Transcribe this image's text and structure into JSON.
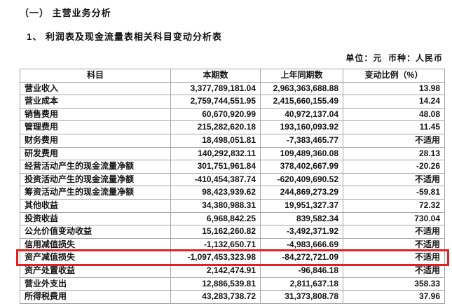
{
  "page": {
    "section_heading": "（一） 主营业务分析",
    "subsection_heading": "1、 利润表及现金流量表相关科目变动分析表",
    "unit_note": "单位：元  币种：人民币"
  },
  "table": {
    "headers": [
      "科目",
      "本期数",
      "上年同期数",
      "变动比例（%）"
    ],
    "rows": [
      {
        "item": "营业收入",
        "current": "3,377,789,181.04",
        "prior": "2,963,363,688.88",
        "change": "13.98",
        "highlight": false
      },
      {
        "item": "营业成本",
        "current": "2,759,744,551.95",
        "prior": "2,415,660,155.49",
        "change": "14.24",
        "highlight": false
      },
      {
        "item": "销售费用",
        "current": "60,670,920.99",
        "prior": "40,972,137.04",
        "change": "48.08",
        "highlight": false
      },
      {
        "item": "管理费用",
        "current": "215,282,620.18",
        "prior": "193,160,093.92",
        "change": "11.45",
        "highlight": false
      },
      {
        "item": "财务费用",
        "current": "18,498,051.81",
        "prior": "-7,383,465.77",
        "change": "不适用",
        "highlight": false
      },
      {
        "item": "研发费用",
        "current": "140,292,832.11",
        "prior": "109,489,360.08",
        "change": "28.13",
        "highlight": false
      },
      {
        "item": "经营活动产生的现金流量净额",
        "current": "301,751,961.84",
        "prior": "378,402,667.99",
        "change": "-20.26",
        "highlight": false
      },
      {
        "item": "投资活动产生的现金流量净额",
        "current": "-410,454,387.74",
        "prior": "-620,409,690.52",
        "change": "不适用",
        "highlight": false
      },
      {
        "item": "筹资活动产生的现金流量净额",
        "current": "98,423,939.62",
        "prior": "244,869,273.29",
        "change": "-59.81",
        "highlight": false
      },
      {
        "item": "其他收益",
        "current": "34,380,988.31",
        "prior": "19,951,327.37",
        "change": "72.32",
        "highlight": false
      },
      {
        "item": "投资收益",
        "current": "6,968,842.25",
        "prior": "839,582.34",
        "change": "730.04",
        "highlight": false
      },
      {
        "item": "公允价值变动收益",
        "current": "15,162,260.82",
        "prior": "-3,492,371.92",
        "change": "不适用",
        "highlight": false
      },
      {
        "item": "信用减值损失",
        "current": "-1,132,650.71",
        "prior": "-4,983,666.69",
        "change": "不适用",
        "highlight": false
      },
      {
        "item": "资产减值损失",
        "current": "-1,097,453,323.98",
        "prior": "-84,272,721.09",
        "change": "不适用",
        "highlight": true
      },
      {
        "item": "资产处置收益",
        "current": "2,142,474.91",
        "prior": "-96,846.18",
        "change": "不适用",
        "highlight": false
      },
      {
        "item": "营业外支出",
        "current": "12,886,539.81",
        "prior": "2,811,637.18",
        "change": "358.33",
        "highlight": false
      },
      {
        "item": "所得税费用",
        "current": "43,283,738.72",
        "prior": "31,373,808.78",
        "change": "37.96",
        "highlight": false
      }
    ]
  },
  "annotation": {
    "highlight_color": "#e02121"
  }
}
